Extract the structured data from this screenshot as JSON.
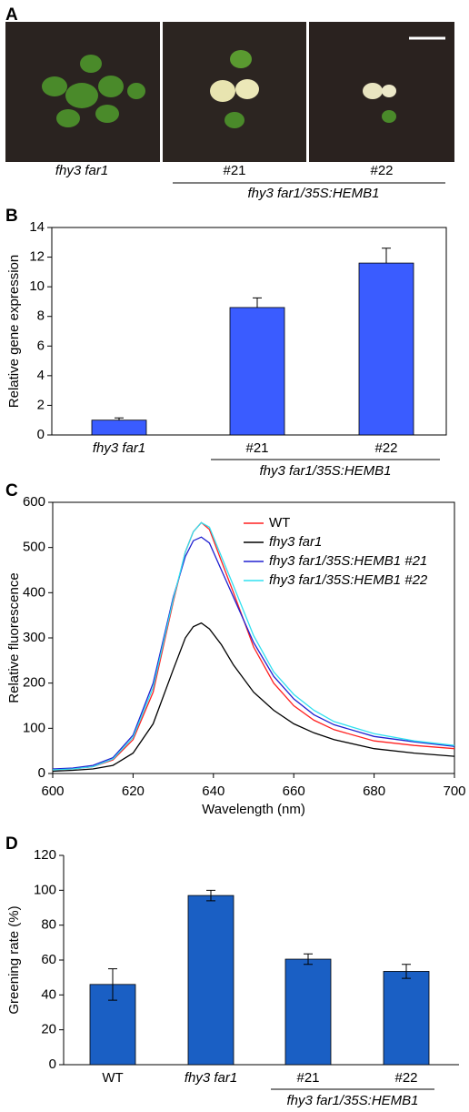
{
  "photos": {
    "label": "A",
    "captions": [
      "fhy3 far1",
      "#21",
      "#22"
    ],
    "group_label": "fhy3 far1/35S:HEMB1"
  },
  "chart_data": [
    {
      "type": "bar",
      "panel_label": "B",
      "y_label": "Relative gene expression",
      "categories": [
        "fhy3 far1",
        "#21",
        "#22"
      ],
      "group_label": "fhy3 far1/35S:HEMB1",
      "values": [
        1.0,
        8.6,
        11.6
      ],
      "errors": [
        0.15,
        0.65,
        1.0
      ],
      "color": "#3a5cff",
      "ylim": [
        0,
        14
      ],
      "yticks": [
        0,
        2,
        4,
        6,
        8,
        10,
        12,
        14
      ]
    },
    {
      "type": "line",
      "panel_label": "C",
      "x_label": "Wavelength (nm)",
      "y_label": "Relative fluorescence",
      "x": [
        600,
        605,
        610,
        615,
        620,
        625,
        630,
        633,
        635,
        637,
        639,
        642,
        645,
        650,
        655,
        660,
        665,
        670,
        680,
        690,
        700
      ],
      "series": [
        {
          "name": "WT",
          "color": "#ff2020",
          "values": [
            8,
            10,
            15,
            30,
            75,
            180,
            380,
            490,
            535,
            555,
            540,
            470,
            400,
            280,
            200,
            150,
            118,
            97,
            72,
            62,
            55
          ]
        },
        {
          "name": "fhy3 far1",
          "color": "#000000",
          "values": [
            5,
            7,
            10,
            18,
            45,
            110,
            230,
            300,
            325,
            333,
            320,
            285,
            240,
            180,
            140,
            110,
            90,
            75,
            55,
            45,
            38
          ]
        },
        {
          "name": "fhy3 far1/35S:HEMB1 #21",
          "color": "#2020d0",
          "values": [
            10,
            12,
            18,
            35,
            85,
            200,
            390,
            480,
            515,
            523,
            510,
            450,
            390,
            290,
            215,
            165,
            130,
            108,
            82,
            70,
            60
          ]
        },
        {
          "name": "fhy3 far1/35S:HEMB1 #22",
          "color": "#30e0f0",
          "values": [
            8,
            10,
            15,
            32,
            80,
            190,
            385,
            490,
            535,
            555,
            545,
            480,
            415,
            305,
            225,
            175,
            140,
            115,
            88,
            72,
            62
          ]
        }
      ],
      "xlim": [
        600,
        700
      ],
      "xticks": [
        600,
        620,
        640,
        660,
        680,
        700
      ],
      "ylim": [
        0,
        600
      ],
      "yticks": [
        0,
        100,
        200,
        300,
        400,
        500,
        600
      ]
    },
    {
      "type": "bar",
      "panel_label": "D",
      "y_label": "Greening rate (%)",
      "categories": [
        "WT",
        "fhy3 far1",
        "#21",
        "#22"
      ],
      "group_label": "fhy3 far1/35S:HEMB1",
      "values": [
        46,
        97,
        60.5,
        53.5
      ],
      "errors": [
        9,
        3,
        3,
        4
      ],
      "color": "#1a5fc4",
      "ylim": [
        0,
        120
      ],
      "yticks": [
        0,
        20,
        40,
        60,
        80,
        100,
        120
      ]
    }
  ]
}
